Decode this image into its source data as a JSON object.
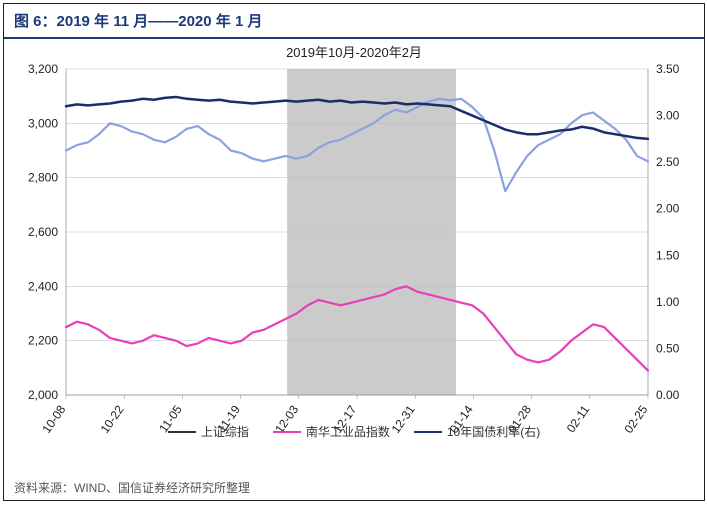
{
  "title": "图 6：2019 年 11 月——2020 年 1 月",
  "subtitle": "2019年10月-2020年2月",
  "source": "资料来源：WIND、国信证券经济研究所整理",
  "chart": {
    "type": "line-dual-axis",
    "left_axis": {
      "min": 2000,
      "max": 3200,
      "step": 200,
      "ticks": [
        2000,
        2200,
        2400,
        2600,
        2800,
        3000,
        3200
      ]
    },
    "right_axis": {
      "min": 0,
      "max": 3.5,
      "step": 0.5,
      "ticks": [
        0.0,
        0.5,
        1.0,
        1.5,
        2.0,
        2.5,
        3.0,
        3.5
      ]
    },
    "x_labels": [
      "10-08",
      "10-22",
      "11-05",
      "11-19",
      "12-03",
      "12-17",
      "12-31",
      "01-14",
      "01-28",
      "02-11",
      "02-25"
    ],
    "shaded_region": {
      "x_start": 3.8,
      "x_end": 6.7
    },
    "legend": [
      {
        "label": "上证综指",
        "color": "#8aa2e0"
      },
      {
        "label": "南华工业品指数",
        "color": "#e83fb8"
      },
      {
        "label": "10年国债利率(右)",
        "color": "#1a2d6b"
      }
    ],
    "series": {
      "shangzheng": {
        "color": "#8aa2e0",
        "axis": "left",
        "width": 2.2,
        "points": [
          2900,
          2920,
          2930,
          2960,
          3000,
          2990,
          2970,
          2960,
          2940,
          2930,
          2950,
          2980,
          2990,
          2960,
          2940,
          2900,
          2890,
          2870,
          2860,
          2870,
          2880,
          2870,
          2880,
          2910,
          2930,
          2940,
          2960,
          2980,
          3000,
          3030,
          3050,
          3040,
          3060,
          3080,
          3090,
          3085,
          3090,
          3060,
          3020,
          2900,
          2750,
          2820,
          2880,
          2920,
          2940,
          2960,
          3000,
          3030,
          3040,
          3010,
          2980,
          2940,
          2880,
          2860
        ]
      },
      "nanhua": {
        "color": "#e83fb8",
        "axis": "left",
        "width": 2.2,
        "points": [
          2250,
          2270,
          2260,
          2240,
          2210,
          2200,
          2190,
          2200,
          2220,
          2210,
          2200,
          2180,
          2190,
          2210,
          2200,
          2190,
          2200,
          2230,
          2240,
          2260,
          2280,
          2300,
          2330,
          2350,
          2340,
          2330,
          2340,
          2350,
          2360,
          2370,
          2390,
          2400,
          2380,
          2370,
          2360,
          2350,
          2340,
          2330,
          2300,
          2250,
          2200,
          2150,
          2130,
          2120,
          2130,
          2160,
          2200,
          2230,
          2260,
          2250,
          2210,
          2170,
          2130,
          2090
        ]
      },
      "bond10y": {
        "color": "#1a2d6b",
        "axis": "right",
        "width": 2.5,
        "points": [
          3.1,
          3.12,
          3.11,
          3.12,
          3.13,
          3.15,
          3.16,
          3.18,
          3.17,
          3.19,
          3.2,
          3.18,
          3.17,
          3.16,
          3.17,
          3.15,
          3.14,
          3.13,
          3.14,
          3.15,
          3.16,
          3.15,
          3.16,
          3.17,
          3.15,
          3.16,
          3.14,
          3.15,
          3.14,
          3.13,
          3.14,
          3.12,
          3.13,
          3.12,
          3.11,
          3.1,
          3.05,
          3.0,
          2.95,
          2.9,
          2.85,
          2.82,
          2.8,
          2.8,
          2.82,
          2.84,
          2.85,
          2.88,
          2.86,
          2.82,
          2.8,
          2.78,
          2.76,
          2.75
        ]
      }
    }
  }
}
